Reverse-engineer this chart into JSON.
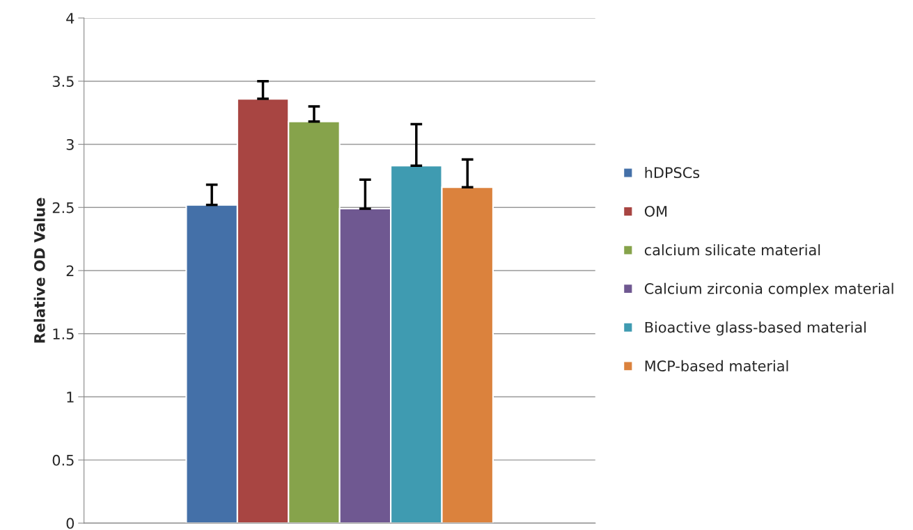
{
  "chart_data": {
    "type": "bar",
    "ylabel": "Relative OD Value",
    "categories": [
      null
    ],
    "series": [
      {
        "name": "hDPSCs",
        "color": "#4470a8",
        "values": [
          2.52
        ],
        "errors": [
          [
            2.52,
            2.68
          ]
        ]
      },
      {
        "name": "OM",
        "color": "#a84542",
        "values": [
          3.36
        ],
        "errors": [
          [
            3.36,
            3.5
          ]
        ]
      },
      {
        "name": "calcium silicate material",
        "color": "#86a34b",
        "values": [
          3.18
        ],
        "errors": [
          [
            3.18,
            3.3
          ]
        ]
      },
      {
        "name": "Calcium zirconia complex material",
        "color": "#6f5891",
        "values": [
          2.49
        ],
        "errors": [
          [
            2.49,
            2.72
          ]
        ]
      },
      {
        "name": "Bioactive glass-based material",
        "color": "#3f9bb1",
        "values": [
          2.83
        ],
        "errors": [
          [
            2.83,
            3.16
          ]
        ]
      },
      {
        "name": "MCP-based material",
        "color": "#db823d",
        "values": [
          2.66
        ],
        "errors": [
          [
            2.66,
            2.88
          ]
        ]
      }
    ],
    "ylim": [
      0,
      4
    ],
    "yticks": [
      0,
      0.5,
      1,
      1.5,
      2,
      2.5,
      3,
      3.5,
      4
    ],
    "grid": "y",
    "legend": "right"
  }
}
